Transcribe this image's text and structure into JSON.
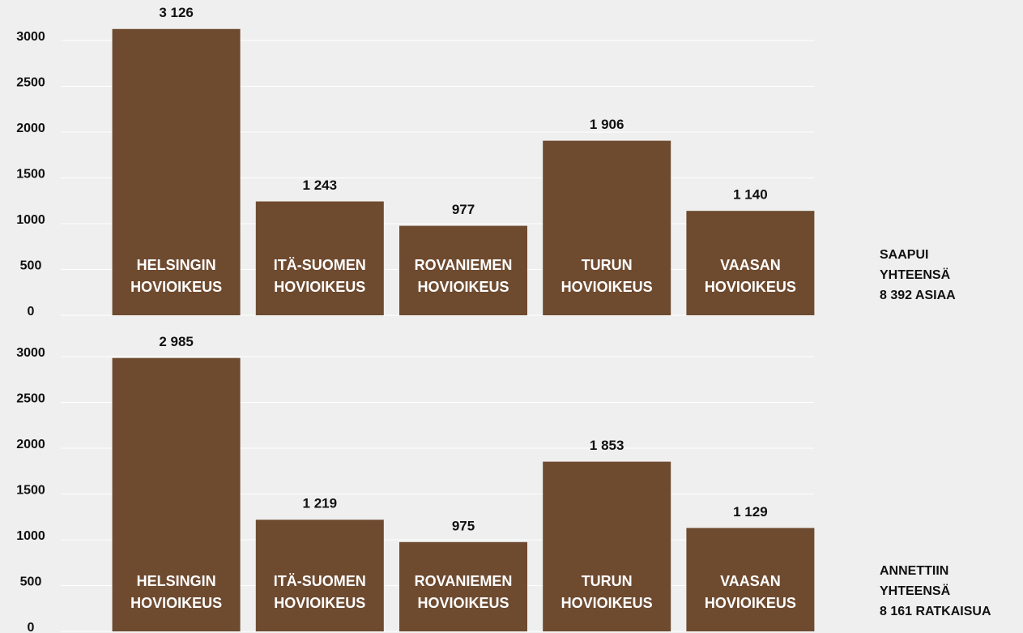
{
  "chart_data": [
    {
      "type": "bar",
      "categories": [
        [
          "HELSINGIN",
          "HOVIOIKEUS"
        ],
        [
          "ITÄ-SUOMEN",
          "HOVIOIKEUS"
        ],
        [
          "ROVANIEMEN",
          "HOVIOIKEUS"
        ],
        [
          "TURUN",
          "HOVIOIKEUS"
        ],
        [
          "VAASAN",
          "HOVIOIKEUS"
        ]
      ],
      "values": [
        3126,
        1243,
        977,
        1906,
        1140
      ],
      "value_labels": [
        "3 126",
        "1 243",
        "977",
        "1 906",
        "1 140"
      ],
      "color": "#6e4a2f",
      "ylim": [
        0,
        3000
      ],
      "yticks": [
        0,
        500,
        1000,
        1500,
        2000,
        2500,
        3000
      ],
      "grid": true,
      "annotation": [
        "SAAPUI",
        "YHTEENSÄ",
        "8 392 ASIAA"
      ]
    },
    {
      "type": "bar",
      "categories": [
        [
          "HELSINGIN",
          "HOVIOIKEUS"
        ],
        [
          "ITÄ-SUOMEN",
          "HOVIOIKEUS"
        ],
        [
          "ROVANIEMEN",
          "HOVIOIKEUS"
        ],
        [
          "TURUN",
          "HOVIOIKEUS"
        ],
        [
          "VAASAN",
          "HOVIOIKEUS"
        ]
      ],
      "values": [
        2985,
        1219,
        975,
        1853,
        1129
      ],
      "value_labels": [
        "2 985",
        "1 219",
        "975",
        "1 853",
        "1 129"
      ],
      "color": "#6e4a2f",
      "ylim": [
        0,
        3000
      ],
      "yticks": [
        0,
        500,
        1000,
        1500,
        2000,
        2500,
        3000
      ],
      "grid": true,
      "annotation": [
        "ANNETTIIN",
        "YHTEENSÄ",
        "8 161 RATKAISUA"
      ]
    }
  ]
}
